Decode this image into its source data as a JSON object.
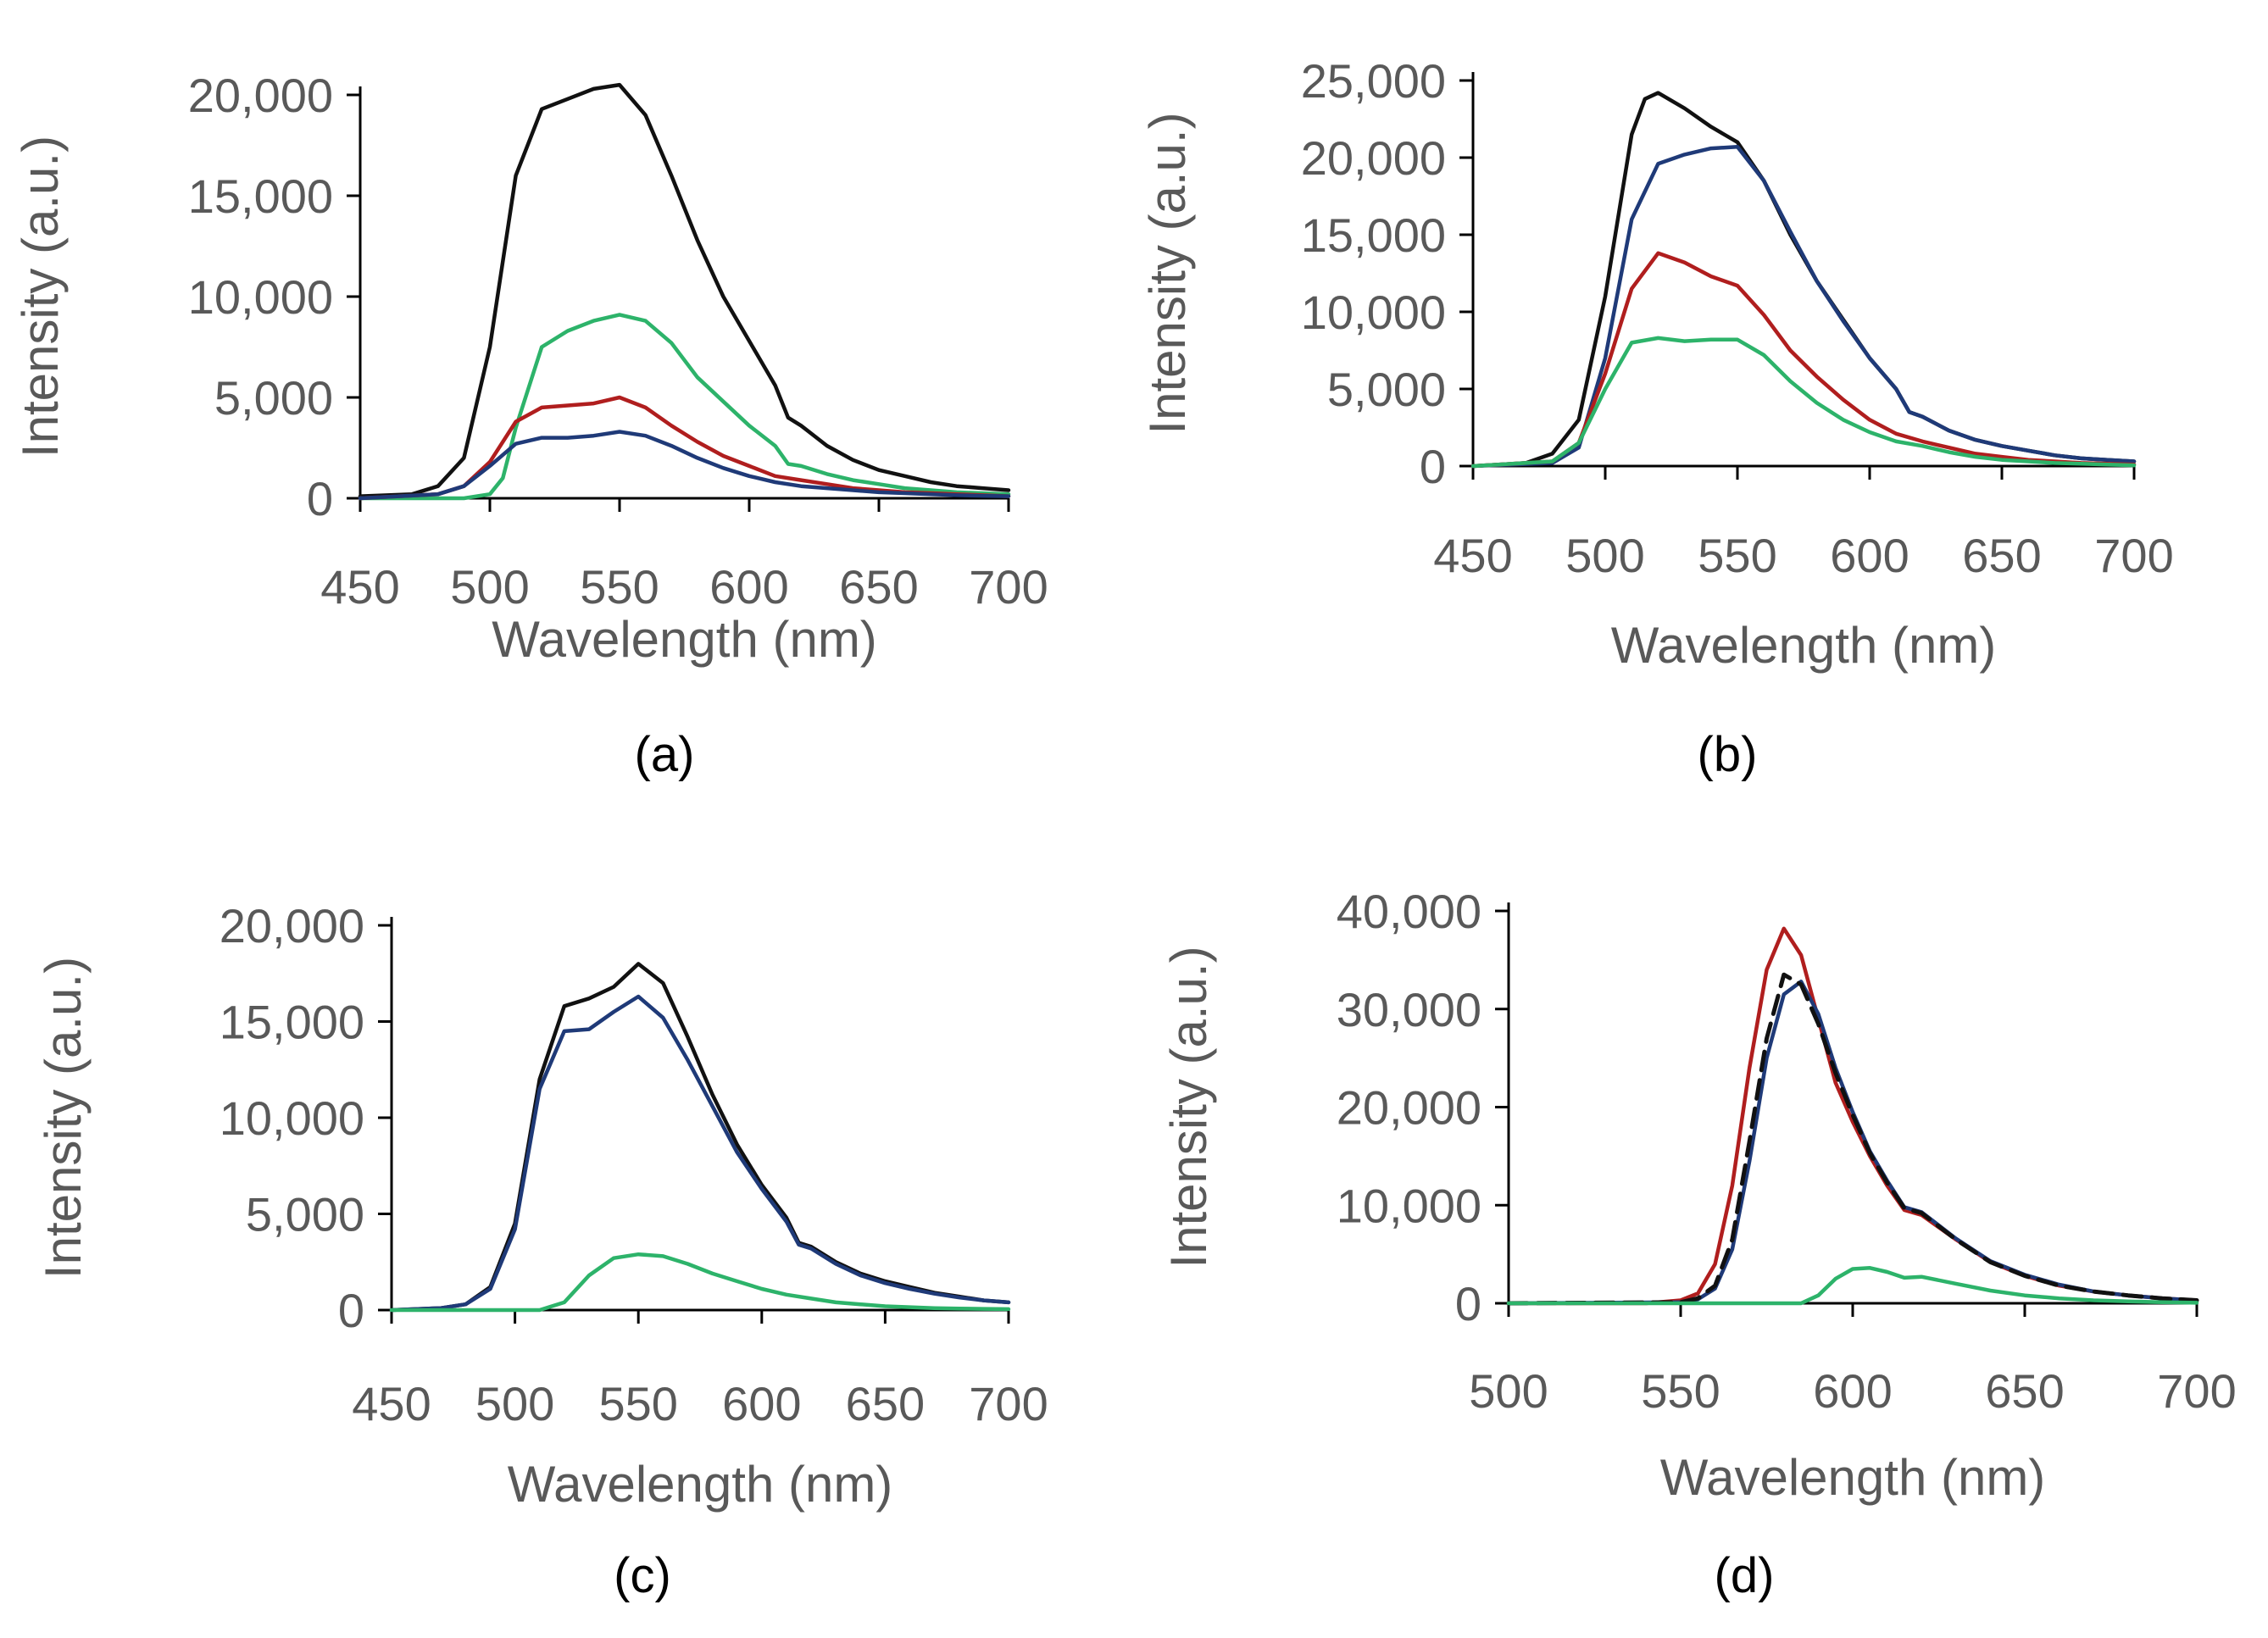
{
  "series_colors": {
    "black": "#111111",
    "green": "#2db36a",
    "red": "#b01e1e",
    "navy": "#1f3a78",
    "dashed": "#111111"
  },
  "chart_data": [
    {
      "id": "a",
      "type": "line",
      "caption": "(a)",
      "xlabel": "Wavelength (nm)",
      "ylabel": "Intensity (a.u.)",
      "xlim": [
        450,
        700
      ],
      "ylim": [
        0,
        20000
      ],
      "x_ticks": [
        "450",
        "500",
        "550",
        "600",
        "650",
        "700"
      ],
      "y_ticks": [
        "0",
        "5,000",
        "10,000",
        "15,000",
        "20,000"
      ],
      "series": [
        {
          "name": "black",
          "color": "#111111",
          "dash": false,
          "x": [
            450,
            470,
            480,
            490,
            500,
            510,
            520,
            530,
            540,
            550,
            560,
            570,
            580,
            590,
            600,
            610,
            615,
            620,
            630,
            640,
            650,
            660,
            670,
            680,
            690,
            700
          ],
          "y": [
            100,
            200,
            600,
            2000,
            7500,
            16000,
            19300,
            19800,
            20300,
            20500,
            19000,
            16000,
            12800,
            10000,
            7800,
            5600,
            4000,
            3600,
            2600,
            1900,
            1400,
            1100,
            800,
            600,
            500,
            400
          ]
        },
        {
          "name": "green",
          "color": "#2db36a",
          "dash": false,
          "x": [
            450,
            490,
            500,
            505,
            510,
            520,
            530,
            540,
            550,
            560,
            570,
            580,
            590,
            600,
            610,
            615,
            620,
            630,
            640,
            650,
            660,
            670,
            680,
            690,
            700
          ],
          "y": [
            0,
            0,
            200,
            1000,
            3500,
            7500,
            8300,
            8800,
            9100,
            8800,
            7700,
            6000,
            4800,
            3600,
            2600,
            1700,
            1600,
            1200,
            900,
            700,
            500,
            400,
            300,
            250,
            200
          ]
        },
        {
          "name": "red",
          "color": "#b01e1e",
          "dash": false,
          "x": [
            450,
            480,
            490,
            500,
            510,
            520,
            530,
            540,
            550,
            560,
            570,
            580,
            590,
            600,
            610,
            620,
            630,
            640,
            650,
            660,
            670,
            680,
            690,
            700
          ],
          "y": [
            0,
            200,
            600,
            1800,
            3800,
            4500,
            4600,
            4700,
            5000,
            4500,
            3600,
            2800,
            2100,
            1600,
            1100,
            900,
            700,
            500,
            400,
            300,
            250,
            200,
            150,
            100
          ]
        },
        {
          "name": "navy",
          "color": "#1f3a78",
          "dash": false,
          "x": [
            450,
            480,
            490,
            500,
            510,
            520,
            530,
            540,
            550,
            560,
            570,
            580,
            590,
            600,
            610,
            620,
            630,
            640,
            650,
            660,
            670,
            680,
            690,
            700
          ],
          "y": [
            0,
            200,
            600,
            1600,
            2700,
            3000,
            3000,
            3100,
            3300,
            3100,
            2600,
            2000,
            1500,
            1100,
            800,
            600,
            500,
            400,
            300,
            250,
            200,
            150,
            120,
            100
          ]
        }
      ]
    },
    {
      "id": "b",
      "type": "line",
      "caption": "(b)",
      "xlabel": "Wavelength (nm)",
      "ylabel": "Intensity (a.u.)",
      "xlim": [
        450,
        700
      ],
      "ylim": [
        0,
        25000
      ],
      "x_ticks": [
        "450",
        "500",
        "550",
        "600",
        "650",
        "700"
      ],
      "y_ticks": [
        "0",
        "5,000",
        "10,000",
        "15,000",
        "20,000",
        "25,000"
      ],
      "series": [
        {
          "name": "black",
          "color": "#111111",
          "dash": false,
          "x": [
            450,
            470,
            480,
            490,
            500,
            510,
            515,
            520,
            530,
            540,
            550,
            560,
            570,
            580,
            590,
            600,
            610,
            615,
            620,
            630,
            640,
            650,
            660,
            670,
            680,
            690,
            700
          ],
          "y": [
            0,
            200,
            800,
            3000,
            11000,
            21500,
            23800,
            24200,
            23200,
            22000,
            21000,
            18500,
            15000,
            12000,
            9500,
            7000,
            5000,
            3500,
            3200,
            2300,
            1700,
            1300,
            1000,
            700,
            500,
            400,
            300
          ]
        },
        {
          "name": "navy",
          "color": "#1f3a78",
          "dash": false,
          "x": [
            450,
            480,
            490,
            500,
            510,
            520,
            530,
            540,
            550,
            560,
            570,
            580,
            590,
            600,
            610,
            615,
            620,
            630,
            640,
            650,
            660,
            670,
            680,
            690,
            700
          ],
          "y": [
            0,
            200,
            1200,
            7000,
            16000,
            19600,
            20200,
            20600,
            20700,
            18500,
            15200,
            12000,
            9400,
            7000,
            5000,
            3500,
            3200,
            2300,
            1700,
            1300,
            1000,
            700,
            500,
            400,
            300
          ]
        },
        {
          "name": "red",
          "color": "#b01e1e",
          "dash": false,
          "x": [
            450,
            480,
            490,
            500,
            510,
            520,
            530,
            540,
            550,
            560,
            570,
            580,
            590,
            600,
            610,
            620,
            630,
            640,
            650,
            660,
            670,
            680,
            690,
            700
          ],
          "y": [
            0,
            300,
            1500,
            6000,
            11500,
            13800,
            13200,
            12300,
            11700,
            9800,
            7500,
            5800,
            4300,
            3000,
            2100,
            1600,
            1200,
            800,
            600,
            400,
            300,
            200,
            150,
            100
          ]
        },
        {
          "name": "green",
          "color": "#2db36a",
          "dash": false,
          "x": [
            450,
            480,
            490,
            500,
            510,
            520,
            530,
            540,
            550,
            560,
            570,
            580,
            590,
            600,
            610,
            620,
            630,
            640,
            650,
            660,
            670,
            680,
            690,
            700
          ],
          "y": [
            0,
            300,
            1500,
            5000,
            8000,
            8300,
            8100,
            8200,
            8200,
            7200,
            5500,
            4100,
            3000,
            2200,
            1600,
            1300,
            900,
            600,
            400,
            300,
            200,
            150,
            100,
            50
          ]
        }
      ]
    },
    {
      "id": "c",
      "type": "line",
      "caption": "(c)",
      "xlabel": "Wavelength (nm)",
      "ylabel": "Intensity (a.u.)",
      "xlim": [
        450,
        700
      ],
      "ylim": [
        0,
        20000
      ],
      "x_ticks": [
        "450",
        "500",
        "550",
        "600",
        "650",
        "700"
      ],
      "y_ticks": [
        "0",
        "5,000",
        "10,000",
        "15,000",
        "20,000"
      ],
      "series": [
        {
          "name": "black",
          "color": "#111111",
          "dash": false,
          "x": [
            450,
            470,
            480,
            490,
            500,
            510,
            520,
            530,
            540,
            550,
            560,
            570,
            580,
            590,
            600,
            610,
            615,
            620,
            630,
            640,
            650,
            660,
            670,
            680,
            690,
            700
          ],
          "y": [
            0,
            100,
            300,
            1200,
            4500,
            12000,
            15800,
            16200,
            16800,
            18000,
            17000,
            14200,
            11200,
            8600,
            6500,
            4800,
            3500,
            3300,
            2500,
            1900,
            1500,
            1200,
            900,
            700,
            500,
            400
          ]
        },
        {
          "name": "navy",
          "color": "#1f3a78",
          "dash": false,
          "x": [
            450,
            470,
            480,
            490,
            500,
            510,
            520,
            530,
            540,
            550,
            560,
            570,
            580,
            590,
            600,
            610,
            615,
            620,
            630,
            640,
            650,
            660,
            670,
            680,
            690,
            700
          ],
          "y": [
            0,
            100,
            300,
            1100,
            4200,
            11500,
            14500,
            14600,
            15500,
            16300,
            15200,
            13000,
            10600,
            8200,
            6300,
            4600,
            3400,
            3200,
            2400,
            1800,
            1400,
            1100,
            850,
            650,
            500,
            400
          ]
        },
        {
          "name": "green",
          "color": "#2db36a",
          "dash": false,
          "x": [
            450,
            510,
            520,
            530,
            540,
            550,
            560,
            570,
            580,
            590,
            600,
            610,
            620,
            630,
            640,
            650,
            660,
            670,
            680,
            690,
            700
          ],
          "y": [
            0,
            0,
            400,
            1800,
            2700,
            2900,
            2800,
            2400,
            1900,
            1500,
            1100,
            800,
            600,
            400,
            300,
            200,
            150,
            100,
            80,
            60,
            50
          ]
        }
      ]
    },
    {
      "id": "d",
      "type": "line",
      "caption": "(d)",
      "xlabel": "Wavelength (nm)",
      "ylabel": "Intensity (a.u.)",
      "xlim": [
        500,
        700
      ],
      "ylim": [
        0,
        40000
      ],
      "x_ticks": [
        "500",
        "550",
        "600",
        "650",
        "700"
      ],
      "y_ticks": [
        "0",
        "10,000",
        "20,000",
        "30,000",
        "40,000"
      ],
      "series": [
        {
          "name": "red",
          "color": "#b01e1e",
          "dash": false,
          "x": [
            500,
            540,
            550,
            555,
            560,
            565,
            570,
            575,
            580,
            585,
            590,
            595,
            600,
            605,
            610,
            615,
            620,
            630,
            640,
            650,
            660,
            670,
            680,
            690,
            700
          ],
          "y": [
            0,
            0,
            300,
            1000,
            4000,
            12000,
            24000,
            34000,
            38200,
            35500,
            29000,
            22500,
            18500,
            15000,
            12000,
            9500,
            9000,
            6500,
            4200,
            2800,
            1800,
            1200,
            800,
            500,
            300
          ]
        },
        {
          "name": "navy",
          "color": "#1f3a78",
          "dash": false,
          "x": [
            500,
            550,
            555,
            560,
            565,
            570,
            575,
            580,
            585,
            590,
            595,
            600,
            605,
            610,
            615,
            620,
            630,
            640,
            650,
            660,
            670,
            680,
            690,
            700
          ],
          "y": [
            0,
            100,
            400,
            1500,
            5500,
            14500,
            25000,
            31500,
            32800,
            29500,
            24000,
            19500,
            15500,
            12500,
            9800,
            9300,
            6600,
            4300,
            2900,
            1900,
            1200,
            800,
            500,
            300
          ]
        },
        {
          "name": "dashed",
          "color": "#111111",
          "dash": true,
          "x": [
            500,
            550,
            555,
            560,
            565,
            570,
            575,
            580,
            585,
            590,
            595,
            600,
            605,
            610,
            615,
            620,
            630,
            640,
            650,
            660,
            670,
            680,
            690,
            700
          ],
          "y": [
            0,
            100,
            500,
            1800,
            6500,
            16500,
            27000,
            33500,
            32500,
            28500,
            23500,
            19200,
            15300,
            12300,
            9700,
            9200,
            6500,
            4200,
            2800,
            1800,
            1200,
            800,
            500,
            300
          ]
        },
        {
          "name": "green",
          "color": "#2db36a",
          "dash": false,
          "x": [
            500,
            585,
            590,
            595,
            600,
            605,
            610,
            615,
            620,
            630,
            640,
            650,
            660,
            670,
            680,
            690,
            700
          ],
          "y": [
            0,
            0,
            800,
            2500,
            3500,
            3600,
            3200,
            2600,
            2700,
            2000,
            1300,
            800,
            500,
            300,
            200,
            100,
            50
          ]
        }
      ]
    }
  ]
}
